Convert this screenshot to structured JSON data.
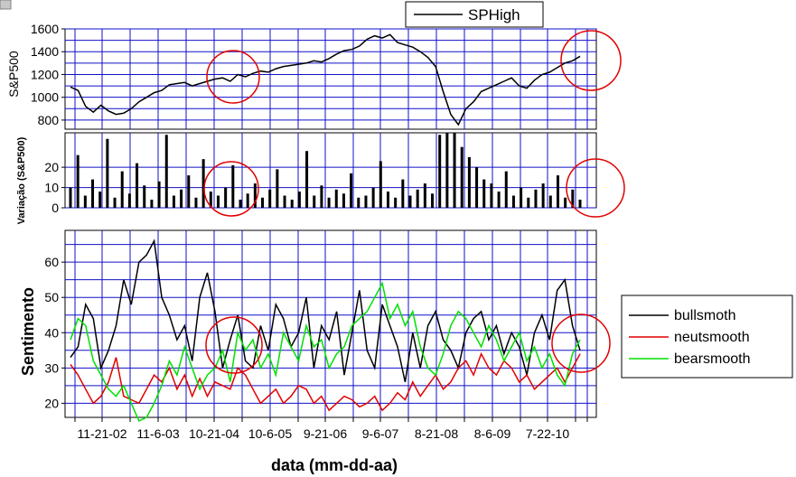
{
  "figure": {
    "xlabel": "data (mm-dd-aa)",
    "x_ticks": [
      "11-21-02",
      "11-6-03",
      "10-21-04",
      "10-6-05",
      "9-21-06",
      "9-6-07",
      "8-21-08",
      "8-6-09",
      "7-22-10"
    ]
  },
  "colors": {
    "grid": "#1010c8",
    "sp": "#000000",
    "bulls": "#000000",
    "neuts": "#e00000",
    "bears": "#00e000",
    "circle": "#e00000"
  },
  "chart_data": [
    {
      "type": "line",
      "ylabel": "S&P500",
      "ylim": [
        720,
        1600
      ],
      "y_ticks": [
        800,
        1000,
        1200,
        1400,
        1600
      ],
      "legend": {
        "entries": [
          "SPHigh"
        ],
        "position": "top"
      },
      "series": [
        {
          "name": "SPHigh",
          "color": "#000000",
          "values": [
            1090,
            1060,
            920,
            870,
            930,
            880,
            850,
            860,
            900,
            960,
            1000,
            1040,
            1060,
            1110,
            1120,
            1130,
            1100,
            1120,
            1140,
            1160,
            1170,
            1140,
            1200,
            1180,
            1210,
            1230,
            1220,
            1250,
            1270,
            1280,
            1290,
            1300,
            1320,
            1310,
            1340,
            1380,
            1410,
            1420,
            1450,
            1510,
            1540,
            1520,
            1550,
            1480,
            1460,
            1440,
            1400,
            1350,
            1270,
            1050,
            850,
            760,
            900,
            960,
            1050,
            1080,
            1110,
            1140,
            1170,
            1100,
            1080,
            1150,
            1200,
            1220,
            1260,
            1300,
            1320,
            1360
          ]
        }
      ]
    },
    {
      "type": "bar",
      "ylabel": "Variação (S&P500)",
      "ylim": [
        0,
        37
      ],
      "y_ticks": [
        0,
        10,
        20
      ],
      "series": [
        {
          "name": "",
          "color": "#000000",
          "values": [
            10,
            26,
            6,
            14,
            8,
            34,
            5,
            18,
            7,
            22,
            11,
            4,
            13,
            36,
            6,
            9,
            16,
            5,
            24,
            8,
            6,
            10,
            21,
            4,
            7,
            12,
            5,
            9,
            19,
            6,
            4,
            8,
            28,
            6,
            11,
            5,
            9,
            7,
            17,
            5,
            6,
            10,
            23,
            8,
            5,
            14,
            6,
            9,
            12,
            7,
            36,
            37,
            37,
            30,
            25,
            20,
            14,
            12,
            8,
            18,
            6,
            10,
            5,
            9,
            12,
            6,
            16,
            5,
            9,
            4
          ]
        }
      ]
    },
    {
      "type": "line",
      "ylabel": "Sentimento",
      "ylim": [
        16,
        69
      ],
      "y_ticks": [
        20,
        30,
        40,
        50,
        60
      ],
      "legend": {
        "entries": [
          "bullsmoth",
          "neutsmooth",
          "bearsmooth"
        ],
        "position": "right"
      },
      "series": [
        {
          "name": "bullsmoth",
          "color": "#000000",
          "values": [
            33,
            36,
            48,
            44,
            30,
            35,
            42,
            55,
            48,
            60,
            62,
            66,
            50,
            45,
            38,
            42,
            32,
            50,
            57,
            46,
            30,
            38,
            45,
            32,
            30,
            42,
            35,
            48,
            44,
            36,
            40,
            50,
            30,
            42,
            38,
            46,
            28,
            40,
            52,
            35,
            30,
            48,
            42,
            36,
            26,
            40,
            30,
            42,
            46,
            38,
            35,
            30,
            40,
            44,
            46,
            38,
            42,
            34,
            40,
            36,
            28,
            40,
            45,
            38,
            52,
            55,
            42,
            35
          ]
        },
        {
          "name": "neutsmooth",
          "color": "#e00000",
          "values": [
            31,
            28,
            24,
            20,
            22,
            26,
            33,
            22,
            21,
            20,
            24,
            28,
            26,
            30,
            24,
            28,
            22,
            27,
            22,
            26,
            25,
            24,
            30,
            28,
            24,
            20,
            22,
            24,
            20,
            22,
            25,
            24,
            20,
            22,
            18,
            20,
            22,
            21,
            19,
            20,
            22,
            18,
            20,
            23,
            21,
            26,
            22,
            25,
            28,
            24,
            26,
            30,
            32,
            28,
            34,
            30,
            28,
            32,
            30,
            26,
            28,
            24,
            26,
            28,
            30,
            26,
            30,
            34
          ]
        },
        {
          "name": "bearsmooth",
          "color": "#00e000",
          "values": [
            38,
            44,
            42,
            32,
            28,
            24,
            22,
            25,
            20,
            15,
            16,
            20,
            25,
            32,
            28,
            36,
            30,
            24,
            28,
            30,
            35,
            26,
            40,
            35,
            38,
            30,
            34,
            28,
            40,
            36,
            32,
            42,
            36,
            38,
            30,
            34,
            36,
            42,
            44,
            46,
            50,
            54,
            44,
            48,
            42,
            46,
            36,
            30,
            28,
            34,
            42,
            46,
            44,
            40,
            36,
            42,
            38,
            32,
            36,
            40,
            32,
            36,
            30,
            34,
            28,
            25,
            34,
            38
          ]
        }
      ]
    }
  ]
}
